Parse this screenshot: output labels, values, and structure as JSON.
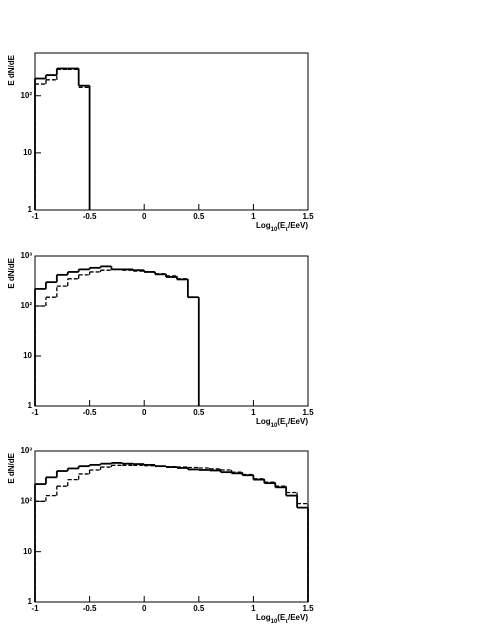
{
  "chart_data": [
    {
      "type": "histogram",
      "ylabel": "E dN/dE",
      "xlabel": [
        "Log",
        "10",
        "(E",
        "τ",
        "/EeV)"
      ],
      "log_y": true,
      "xlim": [
        -1,
        1.5
      ],
      "xticks": [
        -1,
        -0.5,
        0,
        0.5,
        1,
        1.5
      ],
      "ylim": [
        1,
        560
      ],
      "yticks": [
        1,
        10,
        {
          "value": 100,
          "label": "10²"
        }
      ],
      "bins": [
        -1,
        -0.9,
        -0.8,
        -0.7,
        -0.6,
        -0.5
      ],
      "series": [
        {
          "color": "#000000",
          "linestyle": "solid",
          "values": [
            200,
            230,
            300,
            300,
            150
          ]
        },
        {
          "color": "#000000",
          "linestyle": "dashed",
          "values": [
            160,
            190,
            290,
            290,
            140
          ]
        }
      ]
    },
    {
      "type": "histogram",
      "ylabel": "E dN/dE",
      "xlabel": [
        "Log",
        "10",
        "(E",
        "τ",
        "/EeV)"
      ],
      "log_y": true,
      "xlim": [
        -1,
        1.5
      ],
      "xticks": [
        -1,
        -0.5,
        0,
        0.5,
        1,
        1.5
      ],
      "ylim": [
        1,
        1000
      ],
      "yticks": [
        1,
        10,
        {
          "value": 100,
          "label": "10²"
        },
        {
          "value": 1000,
          "label": "10³"
        }
      ],
      "bins": [
        -1,
        -0.9,
        -0.8,
        -0.7,
        -0.6,
        -0.5,
        -0.4,
        -0.3,
        -0.2,
        -0.1,
        0,
        0.1,
        0.2,
        0.3,
        0.4,
        0.5
      ],
      "series": [
        {
          "color": "#000000",
          "linestyle": "solid",
          "values": [
            220,
            300,
            420,
            480,
            540,
            580,
            620,
            540,
            540,
            520,
            480,
            430,
            380,
            340,
            150
          ]
        },
        {
          "color": "#000000",
          "linestyle": "dashed",
          "values": [
            100,
            150,
            250,
            350,
            420,
            480,
            520,
            540,
            520,
            500,
            480,
            440,
            400,
            350,
            150
          ]
        }
      ]
    },
    {
      "type": "histogram",
      "ylabel": "E dN/dE",
      "xlabel": [
        "Log",
        "10",
        "(E",
        "τ",
        "/EeV)"
      ],
      "log_y": true,
      "xlim": [
        -1,
        1.5
      ],
      "xticks": [
        -1,
        -0.5,
        0,
        0.5,
        1,
        1.5
      ],
      "ylim": [
        1,
        1000
      ],
      "yticks": [
        1,
        10,
        {
          "value": 100,
          "label": "10²"
        },
        {
          "value": 1000,
          "label": "10³"
        }
      ],
      "bins": [
        -1,
        -0.9,
        -0.8,
        -0.7,
        -0.6,
        -0.5,
        -0.4,
        -0.3,
        -0.2,
        -0.1,
        0,
        0.1,
        0.2,
        0.3,
        0.4,
        0.5,
        0.6,
        0.7,
        0.8,
        0.9,
        1,
        1.1,
        1.2,
        1.3,
        1.4,
        1.5
      ],
      "series": [
        {
          "color": "#000000",
          "linestyle": "solid",
          "values": [
            220,
            300,
            400,
            450,
            500,
            530,
            560,
            580,
            560,
            550,
            530,
            500,
            480,
            460,
            430,
            420,
            410,
            380,
            360,
            330,
            270,
            230,
            190,
            130,
            75
          ]
        },
        {
          "color": "#000000",
          "linestyle": "dashed",
          "values": [
            100,
            130,
            200,
            270,
            350,
            420,
            480,
            520,
            520,
            520,
            510,
            500,
            490,
            480,
            470,
            460,
            440,
            420,
            380,
            340,
            280,
            240,
            200,
            150,
            90
          ]
        }
      ]
    }
  ]
}
